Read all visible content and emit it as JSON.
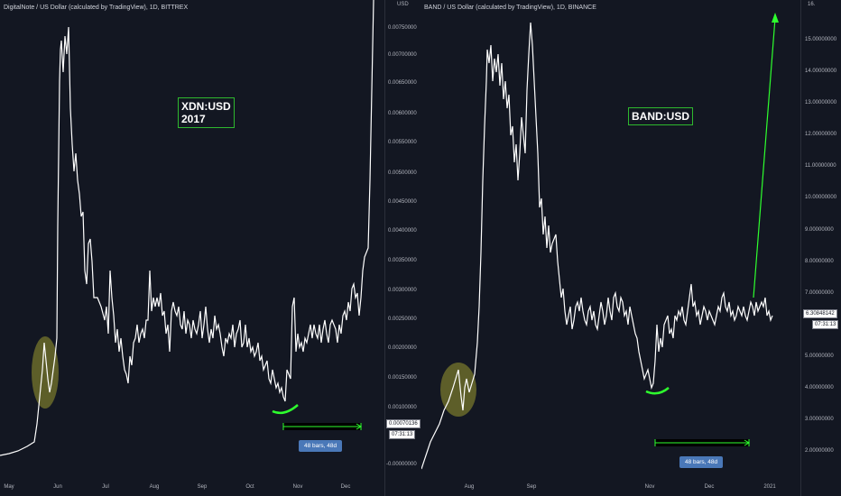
{
  "left": {
    "title": "DigitalNote / US Dollar (calculated by TradingView), 1D, BITTREX",
    "label": "XDN:USD\n2017",
    "unit": "USD",
    "yticks": [
      "0.00750000",
      "0.00700000",
      "0.00650000",
      "0.00600000",
      "0.00550000",
      "0.00500000",
      "0.00450000",
      "0.00400000",
      "0.00350000",
      "0.00300000",
      "0.00250000",
      "0.00200000",
      "0.00150000",
      "0.00100000",
      "-0.00000000"
    ],
    "price_tag": "0.00070136",
    "time_tag": "07:31:13",
    "badge": "48 bars, 48d",
    "xticks": [
      "May",
      "Jun",
      "Jul",
      "Aug",
      "Sep",
      "Oct",
      "Nov",
      "Dec"
    ]
  },
  "right": {
    "title": "BAND / US Dollar (calculated by TradingView), 1D, BINANCE",
    "label": "BAND:USD",
    "unit": "16.",
    "yticks": [
      "15.00000000",
      "14.00000000",
      "13.00000000",
      "12.00000000",
      "11.00000000",
      "10.00000000",
      "9.00000000",
      "8.00000000",
      "7.00000000",
      "6.00000000",
      "5.00000000",
      "4.00000000",
      "3.00000000",
      "2.00000000"
    ],
    "price_tag": "6.30848142",
    "time_tag": "07:31:13",
    "badge": "48 bars, 48d",
    "xticks": [
      "Aug",
      "Sep",
      "Nov",
      "Dec",
      "2021"
    ]
  },
  "colors": {
    "background": "#131722",
    "price_line": "#ffffff",
    "highlight": "#2eb82e",
    "ellipse": "#6b6b2a",
    "badge": "#4a78b8"
  }
}
